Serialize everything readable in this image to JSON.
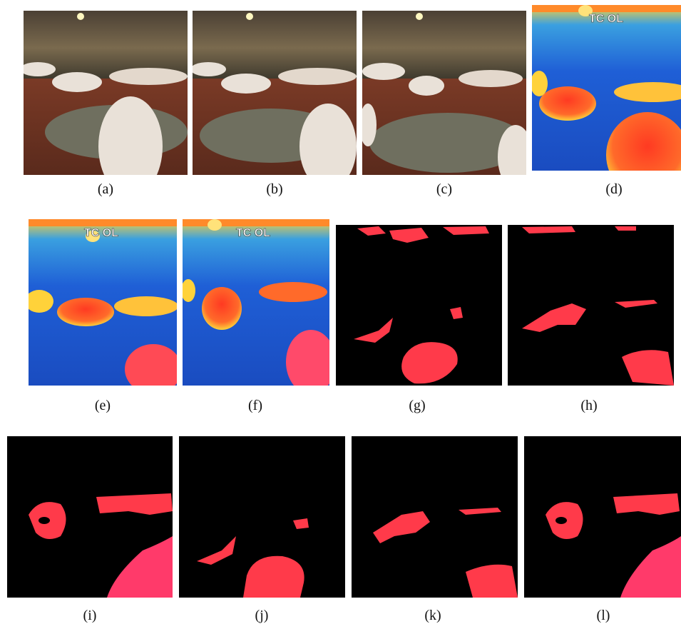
{
  "figure": {
    "overlay_text": "TC OL",
    "panels": [
      {
        "id": "a",
        "caption": "(a)",
        "kind": "rgb"
      },
      {
        "id": "b",
        "caption": "(b)",
        "kind": "rgb"
      },
      {
        "id": "c",
        "caption": "(c)",
        "kind": "rgb"
      },
      {
        "id": "d",
        "caption": "(d)",
        "kind": "thermal"
      },
      {
        "id": "e",
        "caption": "(e)",
        "kind": "thermal"
      },
      {
        "id": "f",
        "caption": "(f)",
        "kind": "thermal"
      },
      {
        "id": "g",
        "caption": "(g)",
        "kind": "mask"
      },
      {
        "id": "h",
        "caption": "(h)",
        "kind": "mask"
      },
      {
        "id": "i",
        "caption": "(i)",
        "kind": "mask"
      },
      {
        "id": "j",
        "caption": "(j)",
        "kind": "mask"
      },
      {
        "id": "k",
        "caption": "(k)",
        "kind": "mask"
      },
      {
        "id": "l",
        "caption": "(l)",
        "kind": "mask"
      }
    ],
    "colors": {
      "wall": "#6b5e4a",
      "floor": "#8a3f2a",
      "pig": "#e9e1d8",
      "mat": "#6f6f5f",
      "thermal_bg": "#1f5fd6",
      "thermal_hot": "#ff4a2a",
      "thermal_warm": "#ffd23a",
      "mask_bg": "#000000",
      "mask_fg": "#ff3a4a"
    }
  }
}
